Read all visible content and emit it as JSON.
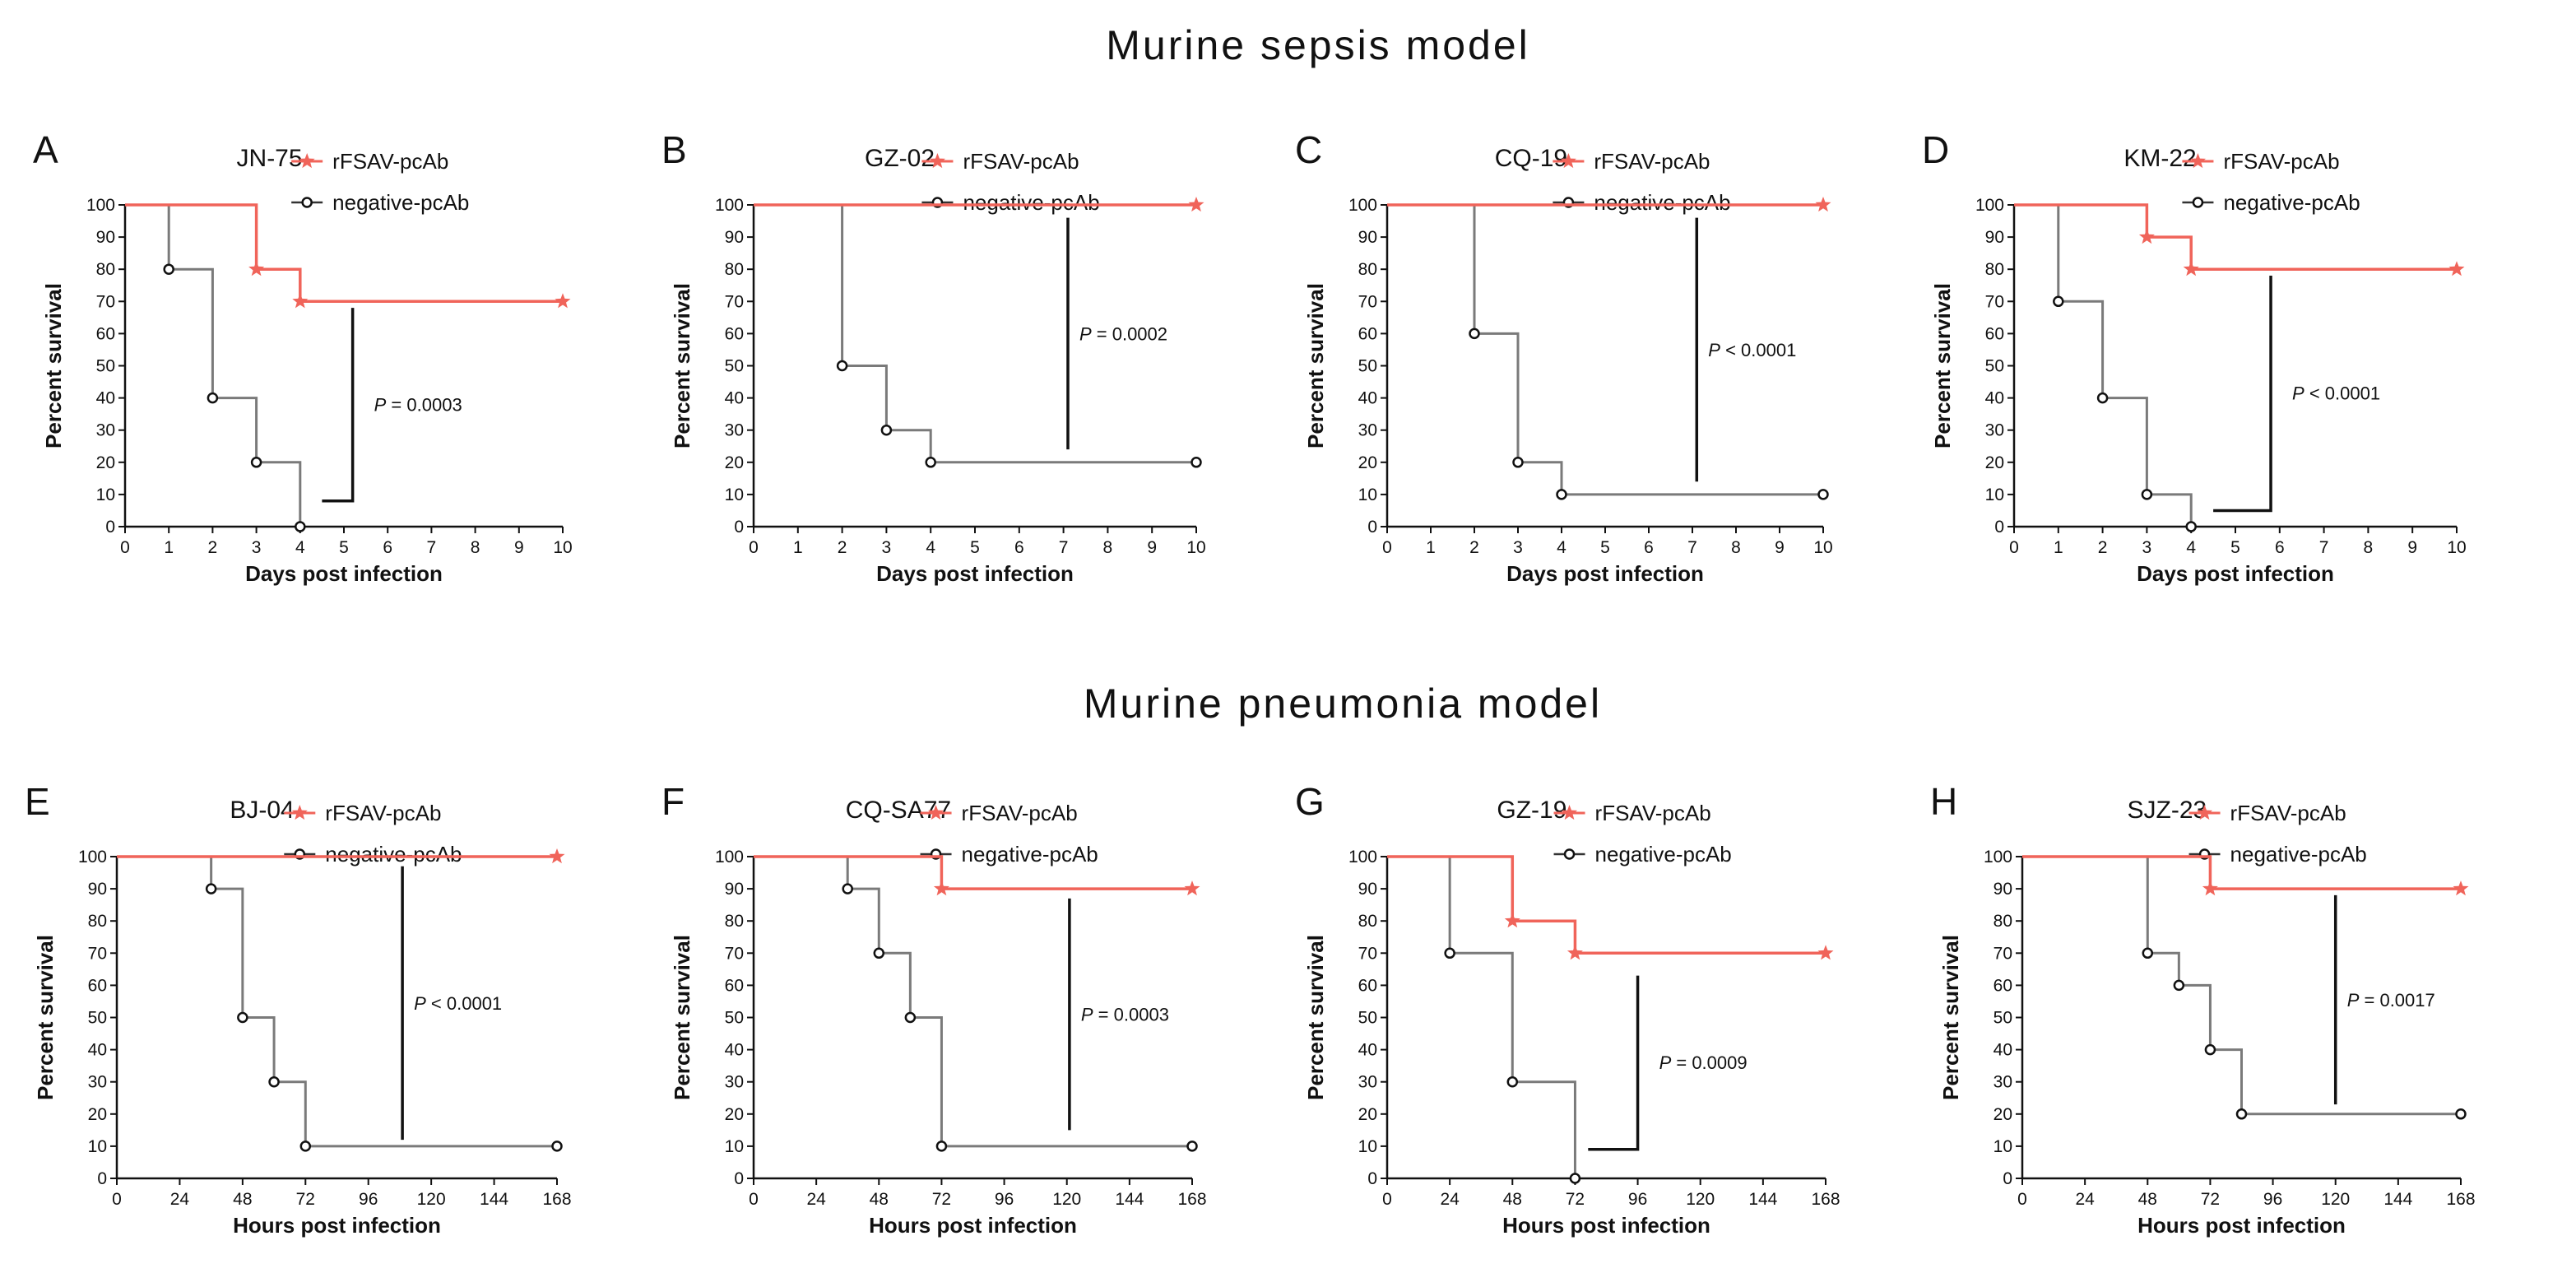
{
  "titles": {
    "sepsis": "Murine sepsis model",
    "pneumonia": "Murine pneumonia model"
  },
  "colors": {
    "treated": "#f0645a",
    "control": "#7a7a7a",
    "axis": "#111111"
  },
  "legend": {
    "treated": "rFSAV-pcAb",
    "control": "negative-pcAb"
  },
  "chart_data": [
    {
      "type": "line",
      "subtype": "kaplan-meier",
      "panel": "A",
      "title": "JN-75",
      "xlabel": "Days post infection",
      "ylabel": "Percent survival",
      "xlim": [
        0,
        10
      ],
      "ylim": [
        0,
        100
      ],
      "xticks": [
        0,
        1,
        2,
        3,
        4,
        5,
        6,
        7,
        8,
        9,
        10
      ],
      "yticks": [
        0,
        10,
        20,
        30,
        40,
        50,
        60,
        70,
        80,
        90,
        100
      ],
      "series": [
        {
          "name": "rFSAV-pcAb",
          "steps": [
            [
              0,
              100
            ],
            [
              3,
              80
            ],
            [
              4,
              70
            ],
            [
              10,
              70
            ]
          ],
          "markers": [
            [
              3,
              80
            ],
            [
              4,
              70
            ],
            [
              10,
              70
            ]
          ]
        },
        {
          "name": "negative-pcAb",
          "steps": [
            [
              0,
              100
            ],
            [
              1,
              80
            ],
            [
              2,
              40
            ],
            [
              3,
              20
            ],
            [
              4,
              0
            ]
          ],
          "markers": [
            [
              1,
              80
            ],
            [
              2,
              40
            ],
            [
              3,
              20
            ],
            [
              4,
              0
            ]
          ]
        }
      ],
      "pvalue": {
        "prefix": "P",
        "text": " = 0.0003",
        "style": "L",
        "x1": 4.5,
        "x2": 5.2,
        "y1": 68,
        "y2": 8
      }
    },
    {
      "type": "line",
      "subtype": "kaplan-meier",
      "panel": "B",
      "title": "GZ-02",
      "xlabel": "Days post infection",
      "ylabel": "Percent survival",
      "xlim": [
        0,
        10
      ],
      "ylim": [
        0,
        100
      ],
      "xticks": [
        0,
        1,
        2,
        3,
        4,
        5,
        6,
        7,
        8,
        9,
        10
      ],
      "yticks": [
        0,
        10,
        20,
        30,
        40,
        50,
        60,
        70,
        80,
        90,
        100
      ],
      "series": [
        {
          "name": "rFSAV-pcAb",
          "steps": [
            [
              0,
              100
            ],
            [
              10,
              100
            ]
          ],
          "markers": [
            [
              10,
              100
            ]
          ]
        },
        {
          "name": "negative-pcAb",
          "steps": [
            [
              0,
              100
            ],
            [
              2,
              50
            ],
            [
              3,
              30
            ],
            [
              4,
              20
            ],
            [
              10,
              20
            ]
          ],
          "markers": [
            [
              2,
              50
            ],
            [
              3,
              30
            ],
            [
              4,
              20
            ],
            [
              10,
              20
            ]
          ]
        }
      ],
      "pvalue": {
        "prefix": "P",
        "text": " = 0.0002",
        "style": "V",
        "x1": 7.1,
        "y1": 96,
        "y2": 24
      }
    },
    {
      "type": "line",
      "subtype": "kaplan-meier",
      "panel": "C",
      "title": "CQ-19",
      "xlabel": "Days post infection",
      "ylabel": "Percent survival",
      "xlim": [
        0,
        10
      ],
      "ylim": [
        0,
        100
      ],
      "xticks": [
        0,
        1,
        2,
        3,
        4,
        5,
        6,
        7,
        8,
        9,
        10
      ],
      "yticks": [
        0,
        10,
        20,
        30,
        40,
        50,
        60,
        70,
        80,
        90,
        100
      ],
      "series": [
        {
          "name": "rFSAV-pcAb",
          "steps": [
            [
              0,
              100
            ],
            [
              10,
              100
            ]
          ],
          "markers": [
            [
              10,
              100
            ]
          ]
        },
        {
          "name": "negative-pcAb",
          "steps": [
            [
              0,
              100
            ],
            [
              2,
              60
            ],
            [
              3,
              20
            ],
            [
              4,
              10
            ],
            [
              10,
              10
            ]
          ],
          "markers": [
            [
              2,
              60
            ],
            [
              3,
              20
            ],
            [
              4,
              10
            ],
            [
              10,
              10
            ]
          ]
        }
      ],
      "pvalue": {
        "prefix": "P",
        "text": " < 0.0001",
        "style": "V",
        "x1": 7.1,
        "y1": 96,
        "y2": 14
      }
    },
    {
      "type": "line",
      "subtype": "kaplan-meier",
      "panel": "D",
      "title": "KM-22",
      "xlabel": "Days post infection",
      "ylabel": "Percent survival",
      "xlim": [
        0,
        10
      ],
      "ylim": [
        0,
        100
      ],
      "xticks": [
        0,
        1,
        2,
        3,
        4,
        5,
        6,
        7,
        8,
        9,
        10
      ],
      "yticks": [
        0,
        10,
        20,
        30,
        40,
        50,
        60,
        70,
        80,
        90,
        100
      ],
      "series": [
        {
          "name": "rFSAV-pcAb",
          "steps": [
            [
              0,
              100
            ],
            [
              3,
              90
            ],
            [
              4,
              80
            ],
            [
              10,
              80
            ]
          ],
          "markers": [
            [
              3,
              90
            ],
            [
              4,
              80
            ],
            [
              10,
              80
            ]
          ]
        },
        {
          "name": "negative-pcAb",
          "steps": [
            [
              0,
              100
            ],
            [
              1,
              70
            ],
            [
              2,
              40
            ],
            [
              3,
              10
            ],
            [
              4,
              0
            ]
          ],
          "markers": [
            [
              1,
              70
            ],
            [
              2,
              40
            ],
            [
              3,
              10
            ],
            [
              4,
              0
            ]
          ]
        }
      ],
      "pvalue": {
        "prefix": "P",
        "text": " < 0.0001",
        "style": "L",
        "x1": 4.5,
        "x2": 5.8,
        "y1": 78,
        "y2": 5
      }
    },
    {
      "type": "line",
      "subtype": "kaplan-meier",
      "panel": "E",
      "title": "BJ-04",
      "xlabel": "Hours post infection",
      "ylabel": "Percent survival",
      "xlim": [
        0,
        168
      ],
      "ylim": [
        0,
        100
      ],
      "xticks": [
        0,
        24,
        48,
        72,
        96,
        120,
        144,
        168
      ],
      "yticks": [
        0,
        10,
        20,
        30,
        40,
        50,
        60,
        70,
        80,
        90,
        100
      ],
      "series": [
        {
          "name": "rFSAV-pcAb",
          "steps": [
            [
              0,
              100
            ],
            [
              168,
              100
            ]
          ],
          "markers": [
            [
              168,
              100
            ]
          ]
        },
        {
          "name": "negative-pcAb",
          "steps": [
            [
              0,
              100
            ],
            [
              36,
              90
            ],
            [
              48,
              50
            ],
            [
              60,
              30
            ],
            [
              72,
              10
            ],
            [
              168,
              10
            ]
          ],
          "markers": [
            [
              36,
              90
            ],
            [
              48,
              50
            ],
            [
              60,
              30
            ],
            [
              72,
              10
            ],
            [
              168,
              10
            ]
          ]
        }
      ],
      "pvalue": {
        "prefix": "P",
        "text": " < 0.0001",
        "style": "V",
        "x1": 109,
        "y1": 97,
        "y2": 12
      }
    },
    {
      "type": "line",
      "subtype": "kaplan-meier",
      "panel": "F",
      "title": "CQ-SA77",
      "xlabel": "Hours post infection",
      "ylabel": "Percent survival",
      "xlim": [
        0,
        168
      ],
      "ylim": [
        0,
        100
      ],
      "xticks": [
        0,
        24,
        48,
        72,
        96,
        120,
        144,
        168
      ],
      "yticks": [
        0,
        10,
        20,
        30,
        40,
        50,
        60,
        70,
        80,
        90,
        100
      ],
      "series": [
        {
          "name": "rFSAV-pcAb",
          "steps": [
            [
              0,
              100
            ],
            [
              72,
              90
            ],
            [
              168,
              90
            ]
          ],
          "markers": [
            [
              72,
              90
            ],
            [
              168,
              90
            ]
          ]
        },
        {
          "name": "negative-pcAb",
          "steps": [
            [
              0,
              100
            ],
            [
              36,
              90
            ],
            [
              48,
              70
            ],
            [
              60,
              50
            ],
            [
              72,
              10
            ],
            [
              168,
              10
            ]
          ],
          "markers": [
            [
              36,
              90
            ],
            [
              48,
              70
            ],
            [
              60,
              50
            ],
            [
              72,
              10
            ],
            [
              168,
              10
            ]
          ]
        }
      ],
      "pvalue": {
        "prefix": "P",
        "text": " = 0.0003",
        "style": "V",
        "x1": 121,
        "y1": 87,
        "y2": 15
      }
    },
    {
      "type": "line",
      "subtype": "kaplan-meier",
      "panel": "G",
      "title": "GZ-19",
      "xlabel": "Hours post infection",
      "ylabel": "Percent survival",
      "xlim": [
        0,
        168
      ],
      "ylim": [
        0,
        100
      ],
      "xticks": [
        0,
        24,
        48,
        72,
        96,
        120,
        144,
        168
      ],
      "yticks": [
        0,
        10,
        20,
        30,
        40,
        50,
        60,
        70,
        80,
        90,
        100
      ],
      "series": [
        {
          "name": "rFSAV-pcAb",
          "steps": [
            [
              0,
              100
            ],
            [
              48,
              80
            ],
            [
              72,
              70
            ],
            [
              168,
              70
            ]
          ],
          "markers": [
            [
              48,
              80
            ],
            [
              72,
              70
            ],
            [
              168,
              70
            ]
          ]
        },
        {
          "name": "negative-pcAb",
          "steps": [
            [
              0,
              100
            ],
            [
              24,
              70
            ],
            [
              48,
              30
            ],
            [
              72,
              0
            ]
          ],
          "markers": [
            [
              24,
              70
            ],
            [
              48,
              30
            ],
            [
              72,
              0
            ]
          ]
        }
      ],
      "pvalue": {
        "prefix": "P",
        "text": " = 0.0009",
        "style": "L",
        "x1": 77,
        "x2": 96,
        "y1": 63,
        "y2": 9
      }
    },
    {
      "type": "line",
      "subtype": "kaplan-meier",
      "panel": "H",
      "title": "SJZ-23",
      "xlabel": "Hours post infection",
      "ylabel": "Percent survival",
      "xlim": [
        0,
        168
      ],
      "ylim": [
        0,
        100
      ],
      "xticks": [
        0,
        24,
        48,
        72,
        96,
        120,
        144,
        168
      ],
      "yticks": [
        0,
        10,
        20,
        30,
        40,
        50,
        60,
        70,
        80,
        90,
        100
      ],
      "series": [
        {
          "name": "rFSAV-pcAb",
          "steps": [
            [
              0,
              100
            ],
            [
              72,
              90
            ],
            [
              168,
              90
            ]
          ],
          "markers": [
            [
              72,
              90
            ],
            [
              168,
              90
            ]
          ]
        },
        {
          "name": "negative-pcAb",
          "steps": [
            [
              0,
              100
            ],
            [
              48,
              70
            ],
            [
              60,
              60
            ],
            [
              72,
              40
            ],
            [
              84,
              20
            ],
            [
              168,
              20
            ]
          ],
          "markers": [
            [
              48,
              70
            ],
            [
              60,
              60
            ],
            [
              72,
              40
            ],
            [
              84,
              20
            ],
            [
              168,
              20
            ]
          ]
        }
      ],
      "pvalue": {
        "prefix": "P",
        "text": " = 0.0017",
        "style": "V",
        "x1": 120,
        "y1": 88,
        "y2": 23
      }
    }
  ]
}
